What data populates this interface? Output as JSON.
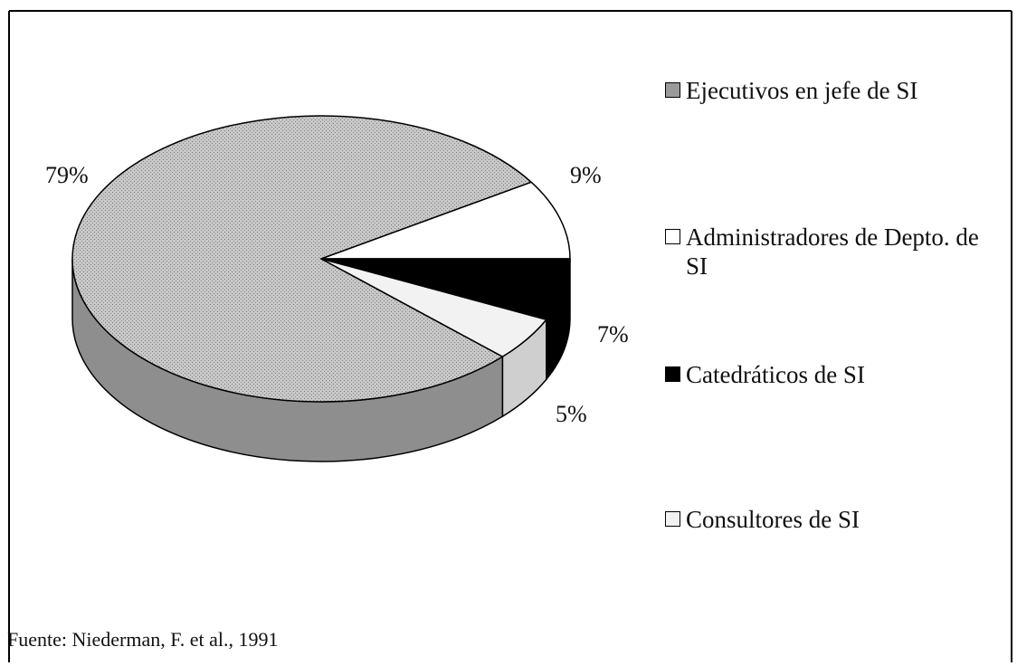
{
  "chart_data": {
    "type": "pie",
    "categories": [
      "Ejecutivos en jefe de SI",
      "Administradores de Depto. de SI",
      "Catedráticos de SI",
      "Consultores de SI"
    ],
    "values": [
      79,
      9,
      7,
      5
    ],
    "value_labels": [
      "79%",
      "9%",
      "7%",
      "5%"
    ],
    "colors": [
      "#bcbcbc",
      "#ffffff",
      "#000000",
      "#f2f2f2"
    ],
    "legend": "right",
    "source": "Fuente: Niederman, F. et al., 1991"
  }
}
